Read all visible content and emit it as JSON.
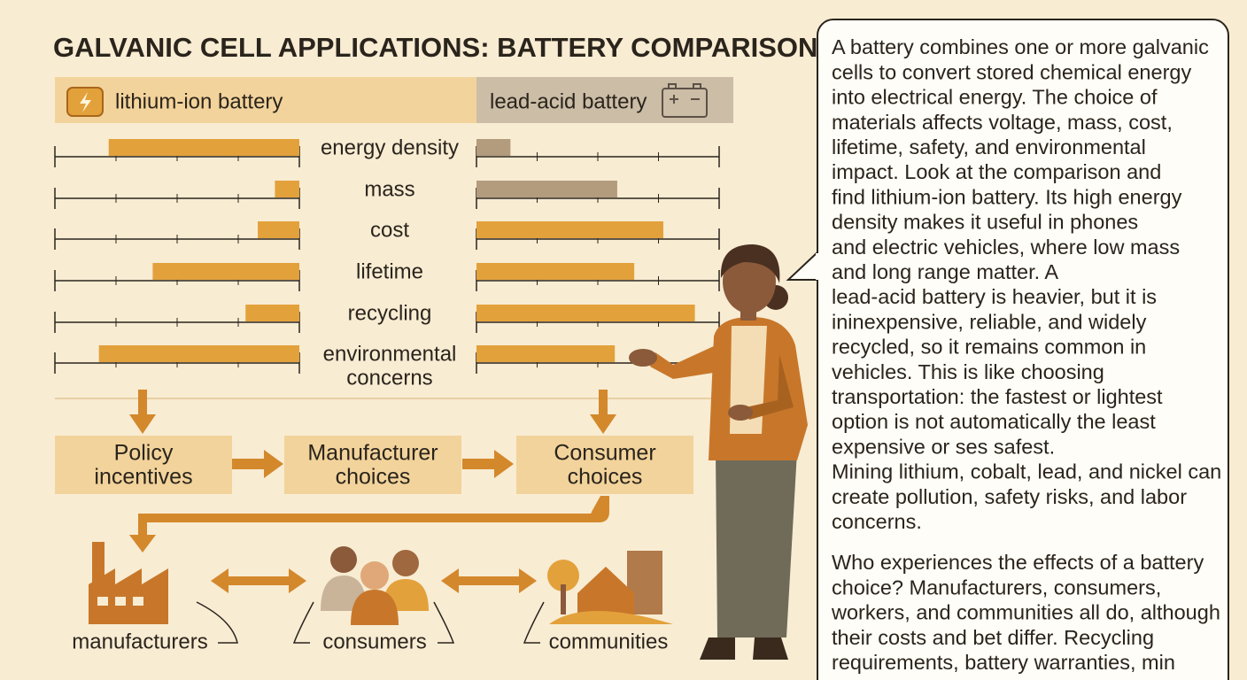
{
  "header": {
    "title": "GALVANIC CELL APPLICATIONS: BATTERY COMPARISON"
  },
  "legend": {
    "lithium_ion": "lithium-ion battery",
    "lead_acid": "lead-acid battery"
  },
  "comparison": {
    "metrics": [
      {
        "lines": [
          "energy density"
        ]
      },
      {
        "lines": [
          "mass"
        ]
      },
      {
        "lines": [
          "cost"
        ]
      },
      {
        "lines": [
          "lifetime"
        ]
      },
      {
        "lines": [
          "recycling"
        ]
      },
      {
        "lines": [
          "environmental",
          "concerns"
        ]
      }
    ],
    "lithium_ion": {
      "color": "#e3a13b",
      "values": [
        78,
        10,
        17,
        60,
        22,
        82
      ]
    },
    "lead_acid": {
      "colors": [
        "#b39b7e",
        "#b39b7e",
        "#e3a13b",
        "#e3a13b",
        "#e3a13b",
        "#e3a13b"
      ],
      "values": [
        14,
        58,
        77,
        65,
        90,
        57
      ]
    }
  },
  "flow": [
    {
      "lines": [
        "Policy",
        "incentives"
      ]
    },
    {
      "lines": [
        "Manufacturer",
        "choices"
      ]
    },
    {
      "lines": [
        "Consumer",
        "choices"
      ]
    }
  ],
  "stakeholders": [
    "manufacturers",
    "consumers",
    "communities"
  ],
  "explanation": {
    "paragraphs": [
      [
        "A battery combines one or more galvanic",
        "cells to convert stored chemical energy",
        "into electrical energy. The choice of",
        "materials affects voltage, mass, cost,",
        "lifetime, safety, and environmental",
        "impact. Look at the comparison and",
        "find lithium-ion battery. Its high energy",
        "density makes it useful in phones",
        "and electric vehicles, where low mass",
        "and long range matter. A",
        "lead-acid battery is heavier, but it is",
        "ininexpensive, reliable, and widely",
        "recycled, so it remains common in",
        "vehicles. This is like choosing",
        "transportation: the fastest or lightest",
        "option is not automatically the least",
        "expensive or ses safest.",
        "Mining lithium, cobalt, lead, and nickel can",
        "create pollution, safety risks, and labor",
        "concerns."
      ],
      [
        "Who experiences the effects of a battery",
        "choice? Manufacturers, consumers,",
        "workers, and communities all do, although",
        "their costs and bet differ. Recycling",
        "requirements, battery warranties, min"
      ]
    ]
  }
}
